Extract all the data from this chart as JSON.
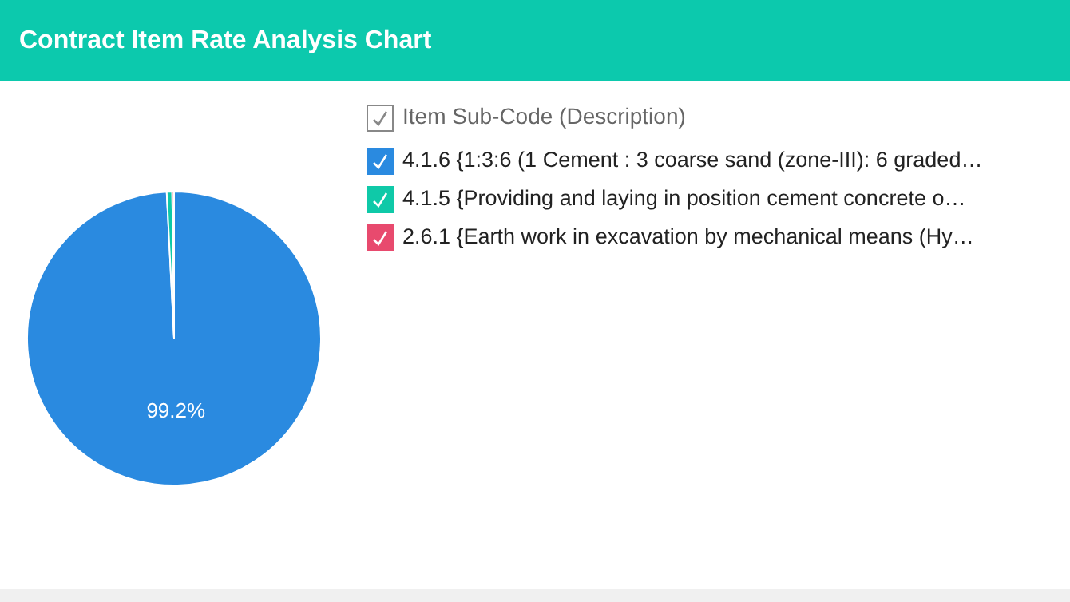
{
  "chart_data": {
    "type": "pie",
    "title": "Contract Item Rate Analysis Chart",
    "legend_title": "Item Sub-Code (Description)",
    "legend": "top right",
    "categories": [
      "4.1.6 {1:3:6 (1 Cement : 3 coarse sand (zone-III): 6 graded…",
      "4.1.5 {Providing and laying in position cement concrete o…",
      "2.6.1 {Earth work in excavation by mechanical means (Hy…"
    ],
    "values": [
      99.2,
      0.6,
      0.2
    ],
    "colors": [
      "#2a8ae0",
      "#0fc9a8",
      "#e84a6e"
    ],
    "value_labels": [
      "99.2%",
      null,
      null
    ]
  }
}
